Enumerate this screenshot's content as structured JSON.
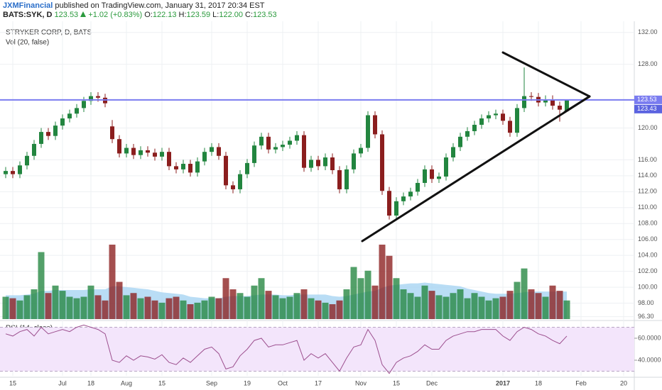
{
  "header": {
    "publisher": "JXMFinancial",
    "published": "published on TradingView.com, January 31, 2017 20:34 EST",
    "symbol": "BATS:SYK, D",
    "last": "123.53",
    "change": "+1.02 (+0.83%)",
    "quote": [
      [
        "O:",
        "122.13"
      ],
      [
        "H:",
        "123.59"
      ],
      [
        "L:",
        "122.00"
      ],
      [
        "C:",
        "123.53"
      ]
    ]
  },
  "chart_data": {
    "type": "candlestick",
    "title": "STRYKER CORP, D, BATS",
    "grid": true,
    "up_color": "#22853f",
    "down_color": "#8b1e1e",
    "categories": [
      null,
      "15",
      null,
      null,
      null,
      null,
      null,
      null,
      "Jul",
      null,
      null,
      null,
      "18",
      null,
      null,
      null,
      null,
      "Aug",
      null,
      null,
      null,
      null,
      "15",
      null,
      null,
      null,
      null,
      null,
      null,
      "Sep",
      null,
      null,
      null,
      null,
      "19",
      null,
      null,
      null,
      null,
      "Oct",
      null,
      null,
      null,
      null,
      "17",
      null,
      null,
      null,
      null,
      null,
      "Nov",
      null,
      null,
      null,
      null,
      "15",
      null,
      null,
      null,
      null,
      "Dec",
      null,
      null,
      null,
      null,
      null,
      null,
      null,
      null,
      null,
      "2017",
      null,
      null,
      null,
      null,
      "18",
      null,
      null,
      null,
      null,
      null,
      "Feb",
      null,
      null,
      null,
      null,
      null,
      "20",
      null
    ],
    "open": [
      114.2,
      114.6,
      114.2,
      115.3,
      116.5,
      118.0,
      119.5,
      119.0,
      120.3,
      121.2,
      121.8,
      122.5,
      123.4,
      124.0,
      123.8,
      120.2,
      118.6,
      116.8,
      117.5,
      116.6,
      117.2,
      116.9,
      116.4,
      117.0,
      115.2,
      114.8,
      115.5,
      114.4,
      115.8,
      117.0,
      117.6,
      116.5,
      112.8,
      112.3,
      114.2,
      115.6,
      117.8,
      118.9,
      117.3,
      117.6,
      117.9,
      118.4,
      119.1,
      115.0,
      116.0,
      115.2,
      116.3,
      114.7,
      112.3,
      114.8,
      116.8,
      117.5,
      121.6,
      119.2,
      112.1,
      109.0,
      110.8,
      111.4,
      112.0,
      113.1,
      114.8,
      113.6,
      113.9,
      116.3,
      117.6,
      118.9,
      119.6,
      120.4,
      121.2,
      121.6,
      121.8,
      120.9,
      119.4,
      122.5,
      124.0,
      123.9,
      123.2,
      123.6,
      122.8,
      122.13,
      null,
      null,
      null,
      null,
      null,
      null,
      null,
      null,
      null
    ],
    "high": [
      115.1,
      115.1,
      115.8,
      117.0,
      118.5,
      120.0,
      120.0,
      120.8,
      121.7,
      122.3,
      123.0,
      123.9,
      124.5,
      124.5,
      124.3,
      121.0,
      119.1,
      118.0,
      118.0,
      117.7,
      117.7,
      117.4,
      117.5,
      117.5,
      115.7,
      116.0,
      116.0,
      116.3,
      117.5,
      118.1,
      118.1,
      117.0,
      113.3,
      114.7,
      116.1,
      118.3,
      119.4,
      119.4,
      118.1,
      118.4,
      118.9,
      119.6,
      119.6,
      116.5,
      116.5,
      116.8,
      116.8,
      115.2,
      115.3,
      117.3,
      118.0,
      122.1,
      122.1,
      119.7,
      112.6,
      111.3,
      111.9,
      112.5,
      113.6,
      115.3,
      115.3,
      114.4,
      116.8,
      118.1,
      119.4,
      120.1,
      120.9,
      121.7,
      122.1,
      122.3,
      122.3,
      121.4,
      123.0,
      127.6,
      124.5,
      124.4,
      124.1,
      124.1,
      123.3,
      123.59,
      null,
      null,
      null,
      null,
      null,
      null,
      null,
      null,
      null
    ],
    "low": [
      113.7,
      113.7,
      113.7,
      114.8,
      116.0,
      117.5,
      118.5,
      118.5,
      119.8,
      120.7,
      121.3,
      122.0,
      122.9,
      123.3,
      122.6,
      118.1,
      116.3,
      116.3,
      116.1,
      116.1,
      116.4,
      115.9,
      115.9,
      114.7,
      114.3,
      114.3,
      113.9,
      113.9,
      115.3,
      116.5,
      116.0,
      112.3,
      111.8,
      111.8,
      113.7,
      115.1,
      117.3,
      116.8,
      116.8,
      117.1,
      117.4,
      117.9,
      114.5,
      114.5,
      114.7,
      114.7,
      114.2,
      111.8,
      111.8,
      114.3,
      116.3,
      117.0,
      118.7,
      111.6,
      108.5,
      108.5,
      110.3,
      110.9,
      111.5,
      112.6,
      113.1,
      113.1,
      113.4,
      115.8,
      117.1,
      118.4,
      119.1,
      119.9,
      120.7,
      121.1,
      120.4,
      118.9,
      118.9,
      122.0,
      123.4,
      122.7,
      122.7,
      122.3,
      120.8,
      122.0,
      null,
      null,
      null,
      null,
      null,
      null,
      null,
      null,
      null
    ],
    "close": [
      114.6,
      114.2,
      115.3,
      116.5,
      118.0,
      119.5,
      119.0,
      120.3,
      121.2,
      121.8,
      122.5,
      123.4,
      124.0,
      123.8,
      123.1,
      118.6,
      116.8,
      117.5,
      116.6,
      117.2,
      116.9,
      116.4,
      117.0,
      115.2,
      114.8,
      115.5,
      114.4,
      115.8,
      117.0,
      117.6,
      116.5,
      112.8,
      112.3,
      114.2,
      115.6,
      117.8,
      118.9,
      117.3,
      117.6,
      117.9,
      118.4,
      119.1,
      115.0,
      116.0,
      115.2,
      116.3,
      114.7,
      112.3,
      114.8,
      116.8,
      117.5,
      121.6,
      119.2,
      112.1,
      109.0,
      110.8,
      111.4,
      112.0,
      113.1,
      114.8,
      113.6,
      113.9,
      116.3,
      117.6,
      118.9,
      119.6,
      120.4,
      121.2,
      121.6,
      121.8,
      120.9,
      119.4,
      122.5,
      124.0,
      123.9,
      123.2,
      123.6,
      122.8,
      122.3,
      123.53,
      null,
      null,
      null,
      null,
      null,
      null,
      null,
      null,
      null
    ],
    "ylim": [
      96,
      133.4
    ],
    "yticks": [
      {
        "value": 132,
        "label": "132.00"
      },
      {
        "value": 128,
        "label": "128.00"
      },
      {
        "value": 120,
        "label": "120.00"
      },
      {
        "value": 116,
        "label": "116.00"
      },
      {
        "value": 114,
        "label": "114.00"
      },
      {
        "value": 112,
        "label": "112.00"
      },
      {
        "value": 110,
        "label": "110.00"
      },
      {
        "value": 108,
        "label": "108.00"
      },
      {
        "value": 106,
        "label": "106.00"
      },
      {
        "value": 104,
        "label": "104.00"
      },
      {
        "value": 102,
        "label": "102.00"
      },
      {
        "value": 100,
        "label": "100.00"
      },
      {
        "value": 98,
        "label": "98.00"
      },
      {
        "value": 96.3,
        "label": "96.30"
      }
    ],
    "price_labels": [
      {
        "value": 123.53,
        "label": "123.53",
        "color": "#7a7cf0"
      },
      {
        "value": 123.43,
        "label": "123.43",
        "color": "#5b63e0"
      }
    ],
    "volume": {
      "name": "Vol (20, false)",
      "lim": [
        0,
        100
      ],
      "ma_color": "#a8d4f2",
      "values": [
        30,
        28,
        25,
        32,
        40,
        90,
        35,
        45,
        38,
        30,
        28,
        30,
        45,
        32,
        25,
        100,
        50,
        32,
        35,
        28,
        30,
        25,
        22,
        28,
        30,
        25,
        20,
        22,
        25,
        30,
        28,
        55,
        40,
        35,
        30,
        45,
        55,
        38,
        32,
        28,
        30,
        35,
        40,
        28,
        25,
        22,
        20,
        25,
        40,
        70,
        55,
        65,
        45,
        100,
        85,
        55,
        40,
        35,
        30,
        45,
        38,
        32,
        30,
        35,
        40,
        28,
        35,
        30,
        25,
        28,
        30,
        38,
        50,
        68,
        40,
        35,
        30,
        45,
        38,
        25,
        null,
        null,
        null,
        null,
        null,
        null,
        null,
        null,
        null
      ],
      "ma": [
        32,
        32,
        32,
        33,
        34,
        38,
        38,
        39,
        39,
        39,
        39,
        39,
        40,
        40,
        40,
        44,
        44,
        43,
        42,
        41,
        40,
        38,
        36,
        35,
        34,
        33,
        30,
        29,
        28,
        28,
        28,
        30,
        31,
        31,
        31,
        32,
        33,
        33,
        33,
        32,
        32,
        33,
        33,
        33,
        33,
        33,
        31,
        30,
        31,
        33,
        35,
        37,
        38,
        42,
        45,
        46,
        47,
        48,
        48,
        49,
        48,
        47,
        46,
        45,
        44,
        41,
        39,
        37,
        35,
        34,
        34,
        34,
        35,
        36,
        37,
        37,
        37,
        37,
        37,
        37,
        null,
        null,
        null,
        null,
        null,
        null,
        null,
        null,
        null
      ]
    },
    "rsi": {
      "name": "RSI (14, close)",
      "color": "#9c4f8e",
      "band_color": "#f3e5fb",
      "bands": [
        70,
        30
      ],
      "ylim": [
        25.8,
        74.2
      ],
      "yticks": [
        {
          "value": 60,
          "label": "60.0000"
        },
        {
          "value": 40,
          "label": "40.0000"
        }
      ],
      "values": [
        64,
        62,
        66,
        68,
        62,
        70,
        64,
        66,
        68,
        66,
        70,
        72,
        70,
        68,
        64,
        40,
        38,
        44,
        40,
        44,
        43,
        41,
        45,
        38,
        36,
        42,
        38,
        44,
        50,
        52,
        46,
        32,
        34,
        44,
        50,
        58,
        60,
        52,
        54,
        54,
        56,
        58,
        40,
        46,
        42,
        46,
        38,
        30,
        42,
        52,
        54,
        68,
        58,
        36,
        28,
        38,
        42,
        44,
        48,
        54,
        50,
        50,
        58,
        62,
        64,
        66,
        66,
        68,
        68,
        68,
        62,
        58,
        66,
        70,
        68,
        64,
        62,
        58,
        55,
        62,
        null,
        null,
        null,
        null,
        null,
        null,
        null,
        null,
        null
      ]
    }
  }
}
